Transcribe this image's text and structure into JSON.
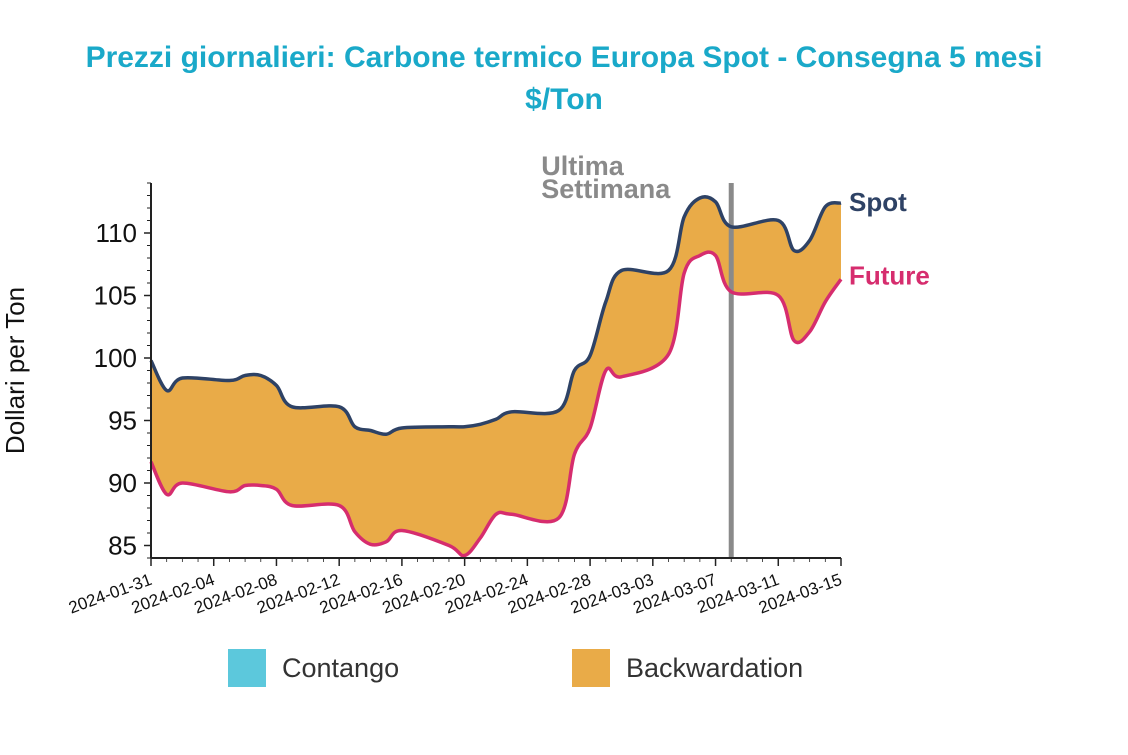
{
  "title": "Prezzi giornalieri: Carbone termico Europa Spot - Consegna 5 mesi",
  "subtitle": "$/Ton",
  "chart_data": {
    "type": "line",
    "ylabel": "Dollari per Ton",
    "ylim": [
      84,
      114
    ],
    "yticks": [
      85,
      90,
      95,
      100,
      105,
      110
    ],
    "xticks": [
      "2024-01-31",
      "2024-02-04",
      "2024-02-08",
      "2024-02-12",
      "2024-02-16",
      "2024-02-20",
      "2024-02-24",
      "2024-02-28",
      "2024-03-03",
      "2024-03-07",
      "2024-03-11",
      "2024-03-15"
    ],
    "x": [
      "2024-01-31",
      "2024-02-01",
      "2024-02-02",
      "2024-02-05",
      "2024-02-06",
      "2024-02-07",
      "2024-02-08",
      "2024-02-09",
      "2024-02-12",
      "2024-02-13",
      "2024-02-14",
      "2024-02-15",
      "2024-02-16",
      "2024-02-19",
      "2024-02-20",
      "2024-02-21",
      "2024-02-22",
      "2024-02-23",
      "2024-02-26",
      "2024-02-27",
      "2024-02-28",
      "2024-02-29",
      "2024-03-01",
      "2024-03-04",
      "2024-03-05",
      "2024-03-06",
      "2024-03-07",
      "2024-03-08",
      "2024-03-11",
      "2024-03-12",
      "2024-03-13",
      "2024-03-14",
      "2024-03-15"
    ],
    "series": [
      {
        "name": "Spot",
        "color": "#2e4265",
        "values": [
          99.8,
          97.4,
          98.4,
          98.2,
          98.6,
          98.6,
          97.8,
          96.1,
          96.1,
          94.5,
          94.2,
          93.9,
          94.4,
          94.5,
          94.5,
          94.7,
          95.1,
          95.7,
          95.8,
          99.0,
          100.2,
          104.5,
          107.0,
          107.0,
          111.3,
          112.8,
          112.5,
          110.5,
          111.0,
          108.6,
          109.4,
          112.1,
          112.4
        ]
      },
      {
        "name": "Future",
        "color": "#d62d6e",
        "values": [
          91.7,
          89.1,
          90.0,
          89.3,
          89.8,
          89.8,
          89.5,
          88.2,
          88.2,
          86.1,
          85.1,
          85.3,
          86.2,
          85.0,
          84.2,
          85.6,
          87.5,
          87.5,
          87.2,
          92.3,
          94.4,
          99.0,
          98.5,
          100.3,
          106.8,
          108.2,
          108.2,
          105.3,
          105.0,
          101.4,
          102.1,
          104.5,
          106.3
        ]
      }
    ],
    "fill_between": {
      "label": "Backwardation",
      "color": "#e9ab48"
    },
    "marker": {
      "date": "2024-03-08",
      "label_lines": [
        "Ultima",
        "Settimana"
      ],
      "color": "#8a8a8a"
    },
    "legend": {
      "position": "bottom",
      "items": [
        {
          "label": "Contango",
          "color": "#5cc8dc"
        },
        {
          "label": "Backwardation",
          "color": "#e9ab48"
        }
      ]
    }
  }
}
